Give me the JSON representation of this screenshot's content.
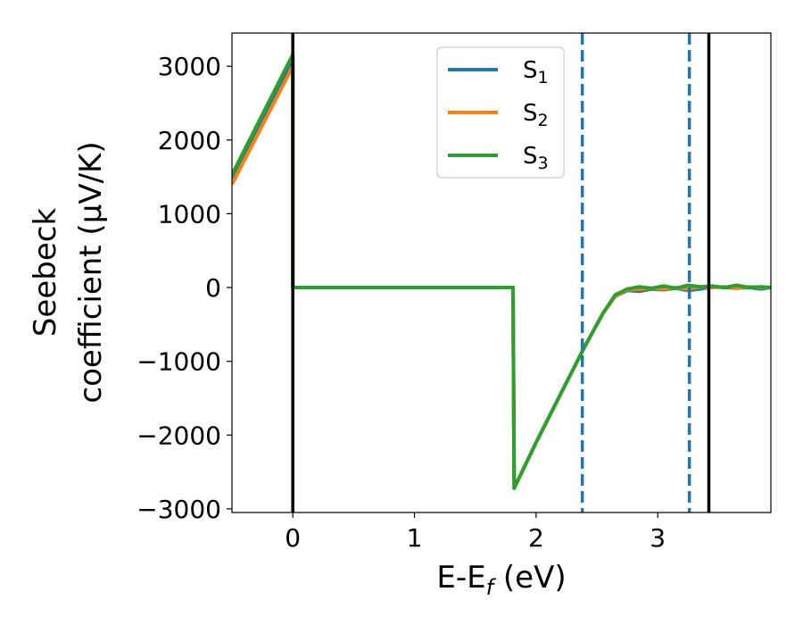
{
  "chart_data": {
    "type": "line",
    "xlabel": "E-E$_f$ (eV)",
    "ylabel_line1": "Seebeck",
    "ylabel_line2": "coefficient  (μV/K)",
    "xlim": [
      -0.5,
      3.93
    ],
    "ylim": [
      -3050,
      3450
    ],
    "xticks": [
      0,
      1,
      2,
      3
    ],
    "yticks": [
      3000,
      2000,
      1000,
      0,
      -1000,
      -2000,
      -3000
    ],
    "ytick_labels": [
      "3000",
      "2000",
      "1000",
      "0",
      "−1000",
      "−2000",
      "−3000"
    ],
    "legend_position": "upper center",
    "series": [
      {
        "name": "S1",
        "color": "#1f77b4",
        "x": [
          -0.5,
          0.0,
          0.0,
          1.81,
          1.82,
          2.0,
          2.2,
          2.4,
          2.55,
          2.65,
          2.75,
          2.85,
          2.95,
          3.05,
          3.15,
          3.25,
          3.35,
          3.45,
          3.55,
          3.65,
          3.75,
          3.85,
          3.93
        ],
        "y": [
          1480,
          3080,
          0,
          0,
          -2720,
          -2100,
          -1450,
          -800,
          -350,
          -120,
          -40,
          -50,
          -20,
          -30,
          -10,
          -40,
          -20,
          10,
          0,
          -10,
          0,
          -20,
          0
        ]
      },
      {
        "name": "S2",
        "color": "#ff7f0e",
        "x": [
          -0.5,
          0.0,
          0.0,
          1.81,
          1.82,
          2.0,
          2.2,
          2.4,
          2.55,
          2.65,
          2.75,
          2.85,
          2.95,
          3.05,
          3.15,
          3.25,
          3.35,
          3.45,
          3.55,
          3.65,
          3.75,
          3.85,
          3.93
        ],
        "y": [
          1400,
          3000,
          0,
          0,
          -2720,
          -2100,
          -1450,
          -800,
          -350,
          -120,
          -30,
          -20,
          -10,
          -20,
          0,
          -20,
          10,
          0,
          10,
          -10,
          10,
          0,
          0
        ]
      },
      {
        "name": "S3",
        "color": "#2ca02c",
        "x": [
          -0.5,
          0.0,
          0.0,
          1.81,
          1.82,
          2.0,
          2.2,
          2.4,
          2.55,
          2.65,
          2.75,
          2.85,
          2.95,
          3.05,
          3.15,
          3.25,
          3.35,
          3.45,
          3.55,
          3.65,
          3.75,
          3.85,
          3.93
        ],
        "y": [
          1530,
          3160,
          0,
          0,
          -2720,
          -2100,
          -1450,
          -800,
          -350,
          -100,
          -20,
          10,
          -10,
          20,
          -10,
          30,
          10,
          20,
          0,
          30,
          0,
          10,
          0
        ]
      }
    ],
    "vlines": [
      {
        "x": 0.0,
        "color": "#000000",
        "style": "solid"
      },
      {
        "x": 3.42,
        "color": "#000000",
        "style": "solid"
      },
      {
        "x": 2.38,
        "color": "#1f77b4",
        "style": "dashed"
      },
      {
        "x": 3.26,
        "color": "#1f77b4",
        "style": "dashed"
      }
    ]
  }
}
